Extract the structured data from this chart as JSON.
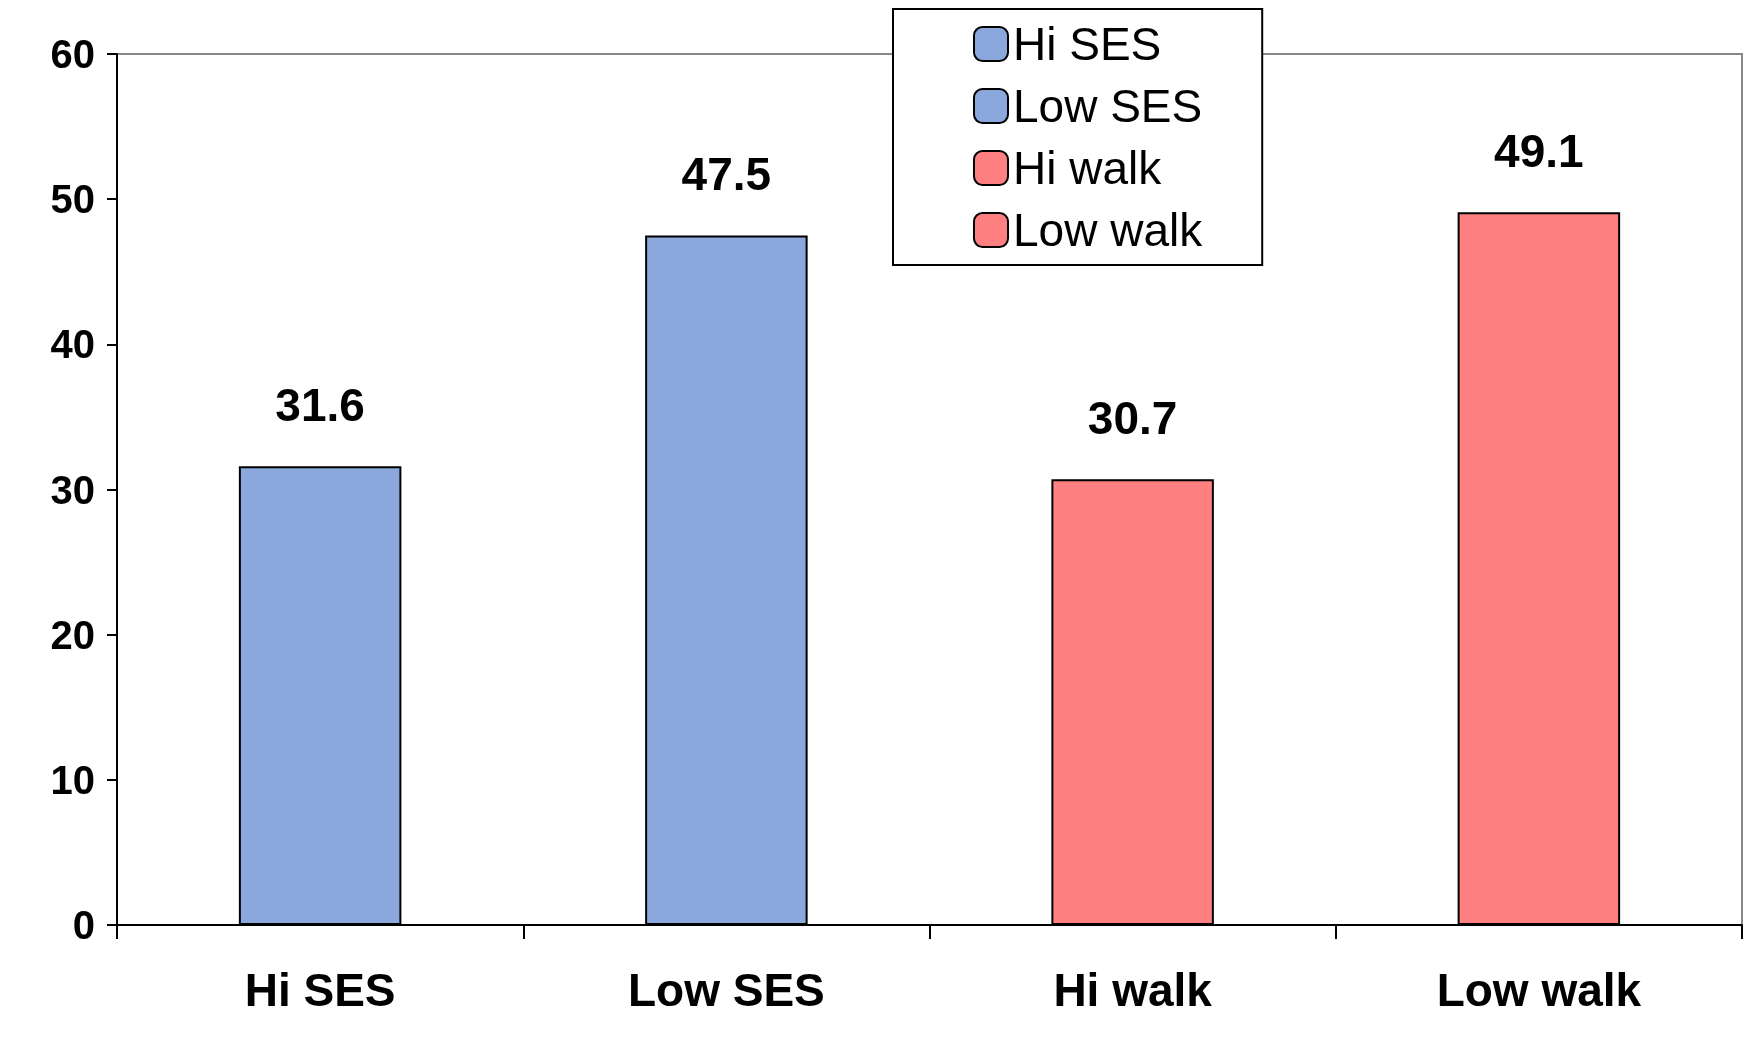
{
  "chart_data": {
    "type": "bar",
    "categories": [
      "Hi SES",
      "Low SES",
      "Hi walk",
      "Low walk"
    ],
    "series": [
      {
        "name": "Hi SES",
        "color": "#8aa8dc",
        "values": [
          31.6,
          null,
          null,
          null
        ]
      },
      {
        "name": "Low SES",
        "color": "#8aa8dc",
        "values": [
          null,
          47.5,
          null,
          null
        ]
      },
      {
        "name": "Hi walk",
        "color": "#ff8080",
        "values": [
          null,
          null,
          30.7,
          null
        ]
      },
      {
        "name": "Low walk",
        "color": "#ff8080",
        "values": [
          null,
          null,
          null,
          49.1
        ]
      }
    ],
    "stacked": true,
    "data_labels": true,
    "ylim": [
      0,
      60
    ],
    "yticks": [
      0,
      10,
      20,
      30,
      40,
      50,
      60
    ],
    "grid": false,
    "legend": "top"
  }
}
